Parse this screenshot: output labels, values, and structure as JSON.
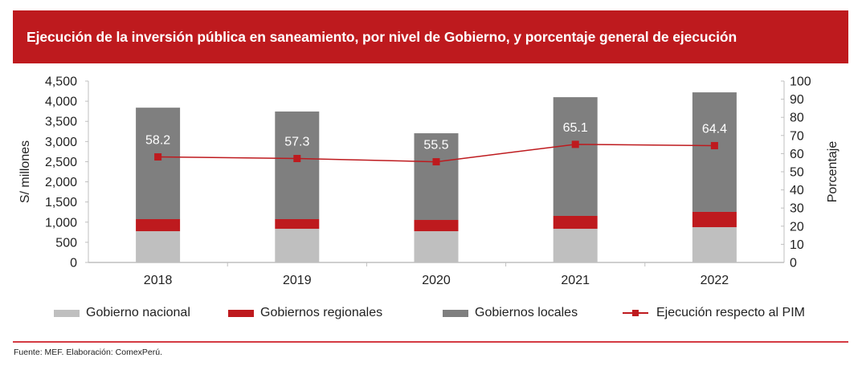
{
  "header": {
    "title": "Ejecución de la inversión pública en saneamiento, por nivel de Gobierno, y porcentaje general de ejecución"
  },
  "footer": {
    "source": "Fuente: MEF. Elaboración: ComexPerú."
  },
  "colors": {
    "brand_red": "#be1a1e",
    "nacional": "#bfbfbf",
    "regionales": "#be1a1e",
    "locales": "#7f7f7f",
    "line": "#be1a1e",
    "axis": "#bfbfbf"
  },
  "chart_data": {
    "type": "bar",
    "stacked": true,
    "title": "Ejecución de la inversión pública en saneamiento, por nivel de Gobierno, y porcentaje general de ejecución",
    "categories": [
      "2018",
      "2019",
      "2020",
      "2021",
      "2022"
    ],
    "series": [
      {
        "name": "Gobierno nacional",
        "type": "bar",
        "axis": "left",
        "values": [
          775,
          835,
          775,
          835,
          875
        ]
      },
      {
        "name": "Gobiernos regionales",
        "type": "bar",
        "axis": "left",
        "values": [
          300,
          240,
          280,
          320,
          380
        ]
      },
      {
        "name": "Gobiernos locales",
        "type": "bar",
        "axis": "left",
        "values": [
          2765,
          2670,
          2150,
          2945,
          2965
        ]
      },
      {
        "name": "Ejecución respecto al PIM",
        "type": "line",
        "axis": "right",
        "marker": "square",
        "values": [
          58.2,
          57.3,
          55.5,
          65.1,
          64.4
        ],
        "labels": [
          "58.2",
          "57.3",
          "55.5",
          "65.1",
          "64.4"
        ]
      }
    ],
    "ylabel": "S/ millones",
    "ylim": [
      0,
      4500
    ],
    "yticks": [
      0,
      500,
      1000,
      1500,
      2000,
      2500,
      3000,
      3500,
      4000,
      4500
    ],
    "ytick_labels": [
      "0",
      "500",
      "1,000",
      "1,500",
      "2,000",
      "2,500",
      "3,000",
      "3,500",
      "4,000",
      "4,500"
    ],
    "y2label": "Porcentaje",
    "y2lim": [
      0,
      100
    ],
    "y2ticks": [
      0,
      10,
      20,
      30,
      40,
      50,
      60,
      70,
      80,
      90,
      100
    ],
    "y2tick_labels": [
      "0",
      "10",
      "20",
      "30",
      "40",
      "50",
      "60",
      "70",
      "80",
      "90",
      "100"
    ],
    "xlabel": "",
    "grid": false,
    "legend": {
      "placement": "bottom",
      "entries": [
        "Gobierno nacional",
        "Gobiernos regionales",
        "Gobiernos locales",
        "Ejecución respecto al PIM"
      ]
    }
  }
}
